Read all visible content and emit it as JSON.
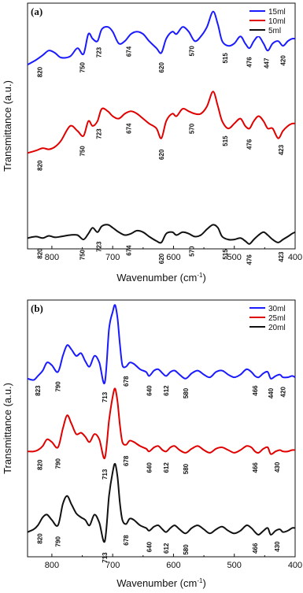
{
  "chart_data": [
    {
      "type": "line",
      "panel_label": "(a)",
      "xlabel": "Wavenumber (cm",
      "xlabel_sup": "-1",
      "xlabel_close": ")",
      "ylabel": "Transmittance (a.u.)",
      "xlim": [
        840,
        400
      ],
      "xticks": [
        "800",
        "700",
        "600",
        "500",
        "400"
      ],
      "legend_position": "top-right",
      "series": [
        {
          "name": "15ml",
          "color": "#1a1aff",
          "x": [
            840,
            826,
            815,
            805,
            795,
            785,
            770,
            758,
            748,
            740,
            733,
            725,
            718,
            708,
            700,
            690,
            680,
            670,
            660,
            650,
            640,
            628,
            620,
            612,
            602,
            595,
            585,
            575,
            565,
            555,
            545,
            535,
            527,
            520,
            510,
            500,
            490,
            482,
            475,
            468,
            460,
            452,
            445,
            437,
            428,
            420,
            412,
            405,
            400
          ],
          "y": [
            0.52,
            0.56,
            0.6,
            0.64,
            0.62,
            0.58,
            0.59,
            0.66,
            0.61,
            0.78,
            0.74,
            0.72,
            0.82,
            0.84,
            0.8,
            0.7,
            0.72,
            0.78,
            0.8,
            0.78,
            0.72,
            0.66,
            0.62,
            0.74,
            0.8,
            0.78,
            0.84,
            0.8,
            0.72,
            0.76,
            0.84,
            0.97,
            0.86,
            0.72,
            0.68,
            0.7,
            0.76,
            0.7,
            0.66,
            0.72,
            0.76,
            0.7,
            0.64,
            0.7,
            0.72,
            0.68,
            0.72,
            0.74,
            0.74
          ],
          "peak_labels": [
            {
              "text": "820",
              "x": 820
            },
            {
              "text": "750",
              "x": 750
            },
            {
              "text": "723",
              "x": 723
            },
            {
              "text": "674",
              "x": 674
            },
            {
              "text": "620",
              "x": 620
            },
            {
              "text": "570",
              "x": 570
            },
            {
              "text": "515",
              "x": 515
            },
            {
              "text": "476",
              "x": 476
            },
            {
              "text": "447",
              "x": 447
            },
            {
              "text": "420",
              "x": 420
            }
          ]
        },
        {
          "name": "10ml",
          "color": "#e00000",
          "x": [
            840,
            826,
            815,
            805,
            795,
            785,
            770,
            758,
            748,
            740,
            733,
            725,
            718,
            708,
            700,
            690,
            680,
            670,
            660,
            650,
            640,
            628,
            620,
            612,
            602,
            595,
            585,
            575,
            565,
            555,
            545,
            535,
            527,
            520,
            510,
            500,
            490,
            482,
            475,
            468,
            460,
            452,
            445,
            437,
            428,
            420,
            412,
            405,
            400
          ],
          "y": [
            0.26,
            0.28,
            0.3,
            0.29,
            0.31,
            0.36,
            0.48,
            0.44,
            0.4,
            0.52,
            0.48,
            0.52,
            0.62,
            0.6,
            0.56,
            0.54,
            0.58,
            0.6,
            0.58,
            0.54,
            0.5,
            0.46,
            0.38,
            0.52,
            0.58,
            0.56,
            0.62,
            0.6,
            0.58,
            0.58,
            0.64,
            0.76,
            0.64,
            0.52,
            0.46,
            0.5,
            0.54,
            0.48,
            0.46,
            0.52,
            0.56,
            0.52,
            0.46,
            0.46,
            0.38,
            0.44,
            0.48,
            0.5,
            0.5
          ],
          "peak_labels": [
            {
              "text": "820",
              "x": 820
            },
            {
              "text": "750",
              "x": 750
            },
            {
              "text": "723",
              "x": 723
            },
            {
              "text": "674",
              "x": 674
            },
            {
              "text": "620",
              "x": 620
            },
            {
              "text": "570",
              "x": 570
            },
            {
              "text": "515",
              "x": 515
            },
            {
              "text": "476",
              "x": 476
            },
            {
              "text": "423",
              "x": 423
            }
          ]
        },
        {
          "name": "5ml",
          "color": "#111111",
          "x": [
            840,
            826,
            815,
            805,
            795,
            785,
            770,
            758,
            748,
            740,
            733,
            725,
            718,
            708,
            700,
            690,
            680,
            670,
            660,
            650,
            640,
            628,
            620,
            612,
            602,
            595,
            585,
            575,
            565,
            555,
            545,
            535,
            527,
            520,
            510,
            500,
            490,
            482,
            475,
            468,
            460,
            452,
            445,
            437,
            428,
            420,
            412,
            405,
            400
          ],
          "y": [
            0.08,
            0.1,
            0.08,
            0.11,
            0.09,
            0.1,
            0.12,
            0.12,
            0.06,
            0.14,
            0.22,
            0.16,
            0.24,
            0.26,
            0.22,
            0.16,
            0.12,
            0.14,
            0.18,
            0.16,
            0.1,
            0.04,
            0.02,
            0.14,
            0.16,
            0.12,
            0.16,
            0.14,
            0.1,
            0.12,
            0.2,
            0.26,
            0.22,
            0.1,
            0.06,
            0.06,
            0.08,
            0.04,
            0.0,
            0.06,
            0.12,
            0.16,
            0.12,
            0.06,
            0.02,
            0.06,
            0.1,
            0.14,
            0.16
          ],
          "peak_labels": [
            {
              "text": "820",
              "x": 820
            },
            {
              "text": "750",
              "x": 750
            },
            {
              "text": "723",
              "x": 723
            },
            {
              "text": "674",
              "x": 674
            },
            {
              "text": "620",
              "x": 620
            },
            {
              "text": "570",
              "x": 570
            },
            {
              "text": "515",
              "x": 515
            },
            {
              "text": "476",
              "x": 476
            },
            {
              "text": "423",
              "x": 423
            }
          ]
        }
      ]
    },
    {
      "type": "line",
      "panel_label": "(b)",
      "xlabel": "Wavenumber (cm",
      "xlabel_sup": "-1",
      "xlabel_close": ")",
      "ylabel": "Transmittance (a.u.)",
      "xlim": [
        840,
        400
      ],
      "xticks": [
        "800",
        "700",
        "600",
        "500",
        "400"
      ],
      "legend_position": "top-right",
      "series": [
        {
          "name": "30ml",
          "color": "#1a1aff",
          "x": [
            840,
            830,
            823,
            815,
            808,
            800,
            790,
            782,
            775,
            768,
            760,
            752,
            745,
            738,
            730,
            722,
            713,
            706,
            700,
            696,
            692,
            688,
            684,
            678,
            672,
            665,
            655,
            645,
            640,
            632,
            625,
            618,
            612,
            605,
            598,
            590,
            580,
            570,
            560,
            550,
            540,
            530,
            520,
            510,
            500,
            490,
            480,
            472,
            466,
            460,
            452,
            445,
            440,
            432,
            425,
            420,
            412,
            405,
            400
          ],
          "y": [
            0.45,
            0.44,
            0.47,
            0.51,
            0.57,
            0.55,
            0.5,
            0.62,
            0.7,
            0.67,
            0.62,
            0.64,
            0.58,
            0.54,
            0.62,
            0.57,
            0.42,
            0.82,
            0.95,
            1.0,
            0.9,
            0.7,
            0.55,
            0.54,
            0.57,
            0.56,
            0.52,
            0.5,
            0.47,
            0.51,
            0.52,
            0.49,
            0.47,
            0.5,
            0.51,
            0.48,
            0.45,
            0.49,
            0.51,
            0.48,
            0.46,
            0.5,
            0.51,
            0.48,
            0.46,
            0.48,
            0.52,
            0.5,
            0.47,
            0.46,
            0.49,
            0.5,
            0.45,
            0.47,
            0.48,
            0.46,
            0.46,
            0.47,
            0.46
          ],
          "peak_labels": [
            {
              "text": "823",
              "x": 823
            },
            {
              "text": "790",
              "x": 790
            },
            {
              "text": "713",
              "x": 713
            },
            {
              "text": "678",
              "x": 678
            },
            {
              "text": "640",
              "x": 640
            },
            {
              "text": "612",
              "x": 612
            },
            {
              "text": "580",
              "x": 580
            },
            {
              "text": "466",
              "x": 466
            },
            {
              "text": "440",
              "x": 440
            },
            {
              "text": "420",
              "x": 420
            }
          ]
        },
        {
          "name": "25ml",
          "color": "#e00000",
          "x": [
            840,
            830,
            823,
            815,
            808,
            800,
            790,
            782,
            775,
            768,
            760,
            752,
            745,
            738,
            730,
            722,
            713,
            706,
            700,
            696,
            692,
            688,
            684,
            678,
            672,
            665,
            655,
            645,
            640,
            632,
            625,
            618,
            612,
            605,
            598,
            590,
            580,
            570,
            560,
            550,
            540,
            530,
            520,
            510,
            500,
            490,
            480,
            472,
            466,
            460,
            452,
            445,
            440,
            432,
            425,
            420,
            412,
            405,
            400
          ],
          "y": [
            0.27,
            0.27,
            0.28,
            0.31,
            0.36,
            0.34,
            0.3,
            0.44,
            0.54,
            0.48,
            0.4,
            0.41,
            0.38,
            0.34,
            0.4,
            0.36,
            0.22,
            0.5,
            0.68,
            0.74,
            0.64,
            0.46,
            0.34,
            0.32,
            0.35,
            0.34,
            0.31,
            0.29,
            0.27,
            0.3,
            0.31,
            0.28,
            0.27,
            0.3,
            0.31,
            0.28,
            0.26,
            0.29,
            0.31,
            0.28,
            0.26,
            0.29,
            0.3,
            0.28,
            0.26,
            0.28,
            0.31,
            0.3,
            0.27,
            0.26,
            0.29,
            0.3,
            0.25,
            0.27,
            0.28,
            0.27,
            0.27,
            0.28,
            0.28
          ],
          "peak_labels": [
            {
              "text": "820",
              "x": 820
            },
            {
              "text": "790",
              "x": 790
            },
            {
              "text": "713",
              "x": 713
            },
            {
              "text": "678",
              "x": 678
            },
            {
              "text": "640",
              "x": 640
            },
            {
              "text": "612",
              "x": 612
            },
            {
              "text": "580",
              "x": 580
            },
            {
              "text": "466",
              "x": 466
            },
            {
              "text": "430",
              "x": 430
            }
          ]
        },
        {
          "name": "20ml",
          "color": "#111111",
          "x": [
            840,
            830,
            823,
            815,
            808,
            800,
            790,
            782,
            775,
            768,
            760,
            752,
            745,
            738,
            730,
            722,
            713,
            706,
            700,
            696,
            692,
            688,
            684,
            678,
            672,
            665,
            655,
            645,
            640,
            632,
            625,
            618,
            612,
            605,
            598,
            590,
            580,
            570,
            560,
            550,
            540,
            530,
            520,
            510,
            500,
            490,
            480,
            472,
            466,
            460,
            452,
            445,
            440,
            432,
            425,
            420,
            412,
            405,
            400
          ],
          "y": [
            0.07,
            0.09,
            0.12,
            0.18,
            0.2,
            0.16,
            0.12,
            0.28,
            0.34,
            0.28,
            0.21,
            0.18,
            0.16,
            0.12,
            0.2,
            0.14,
            0.0,
            0.34,
            0.52,
            0.58,
            0.48,
            0.28,
            0.16,
            0.13,
            0.17,
            0.16,
            0.12,
            0.1,
            0.08,
            0.11,
            0.12,
            0.09,
            0.07,
            0.1,
            0.12,
            0.09,
            0.06,
            0.1,
            0.12,
            0.09,
            0.06,
            0.09,
            0.11,
            0.08,
            0.06,
            0.08,
            0.12,
            0.1,
            0.07,
            0.05,
            0.08,
            0.1,
            0.05,
            0.08,
            0.09,
            0.07,
            0.08,
            0.1,
            0.1
          ],
          "peak_labels": [
            {
              "text": "820",
              "x": 820
            },
            {
              "text": "790",
              "x": 790
            },
            {
              "text": "713",
              "x": 713
            },
            {
              "text": "678",
              "x": 678
            },
            {
              "text": "640",
              "x": 640
            },
            {
              "text": "612",
              "x": 612
            },
            {
              "text": "580",
              "x": 580
            },
            {
              "text": "466",
              "x": 466
            },
            {
              "text": "430",
              "x": 430
            }
          ]
        }
      ]
    }
  ]
}
